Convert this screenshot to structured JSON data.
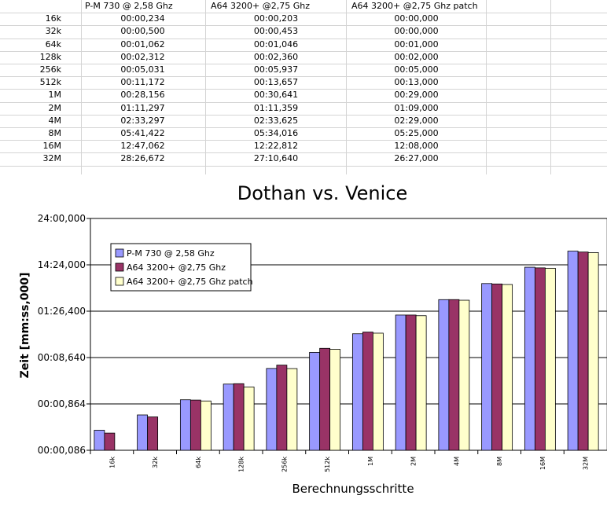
{
  "sheet": {
    "headers": [
      "P-M 730 @ 2,58 Ghz",
      "A64 3200+ @2,75 Ghz",
      "A64 3200+ @2,75 Ghz patch"
    ],
    "rows": [
      {
        "label": "16k",
        "values": [
          "00:00,234",
          "00:00,203",
          "00:00,000"
        ]
      },
      {
        "label": "32k",
        "values": [
          "00:00,500",
          "00:00,453",
          "00:00,000"
        ]
      },
      {
        "label": "64k",
        "values": [
          "00:01,062",
          "00:01,046",
          "00:01,000"
        ]
      },
      {
        "label": "128k",
        "values": [
          "00:02,312",
          "00:02,360",
          "00:02,000"
        ]
      },
      {
        "label": "256k",
        "values": [
          "00:05,031",
          "00:05,937",
          "00:05,000"
        ]
      },
      {
        "label": "512k",
        "values": [
          "00:11,172",
          "00:13,657",
          "00:13,000"
        ]
      },
      {
        "label": "1M",
        "values": [
          "00:28,156",
          "00:30,641",
          "00:29,000"
        ]
      },
      {
        "label": "2M",
        "values": [
          "01:11,297",
          "01:11,359",
          "01:09,000"
        ]
      },
      {
        "label": "4M",
        "values": [
          "02:33,297",
          "02:33,625",
          "02:29,000"
        ]
      },
      {
        "label": "8M",
        "values": [
          "05:41,422",
          "05:34,016",
          "05:25,000"
        ]
      },
      {
        "label": "16M",
        "values": [
          "12:47,062",
          "12:22,812",
          "12:08,000"
        ]
      },
      {
        "label": "32M",
        "values": [
          "28:26,672",
          "27:10,640",
          "26:27,000"
        ]
      }
    ]
  },
  "chart_data": {
    "type": "bar",
    "title": "Dothan vs. Venice",
    "xlabel": "Berechnungsschritte",
    "ylabel": "Zeit [mm:ss,000]",
    "scale": "log",
    "ylim": [
      0.0864,
      1440
    ],
    "yticks": [
      {
        "value": 0.0864,
        "label": "00:00,086"
      },
      {
        "value": 0.864,
        "label": "00:00,864"
      },
      {
        "value": 8.64,
        "label": "00:08,640"
      },
      {
        "value": 86.4,
        "label": "01:26,400"
      },
      {
        "value": 864,
        "label": "14:24,000"
      },
      {
        "value": 8640,
        "label": "24:00,000"
      }
    ],
    "grid": true,
    "legend_position": "top-left",
    "categories": [
      "16k",
      "32k",
      "64k",
      "128k",
      "256k",
      "512k",
      "1M",
      "2M",
      "4M",
      "8M",
      "16M",
      "32M"
    ],
    "series": [
      {
        "name": "P-M 730 @ 2,58 Ghz",
        "color": "#9999ff",
        "values": [
          0.234,
          0.5,
          1.062,
          2.312,
          5.031,
          11.172,
          28.156,
          71.297,
          153.297,
          341.422,
          767.062,
          1706.672
        ]
      },
      {
        "name": "A64 3200+ @2,75 Ghz",
        "color": "#993366",
        "values": [
          0.203,
          0.453,
          1.046,
          2.36,
          5.937,
          13.657,
          30.641,
          71.359,
          153.625,
          334.016,
          742.812,
          1630.64
        ]
      },
      {
        "name": "A64 3200+ @2,75 Ghz patch",
        "color": "#ffffcc",
        "values": [
          0,
          0,
          1.0,
          2.0,
          5.0,
          13.0,
          29.0,
          69.0,
          149.0,
          325.0,
          728.0,
          1587.0
        ]
      }
    ]
  }
}
